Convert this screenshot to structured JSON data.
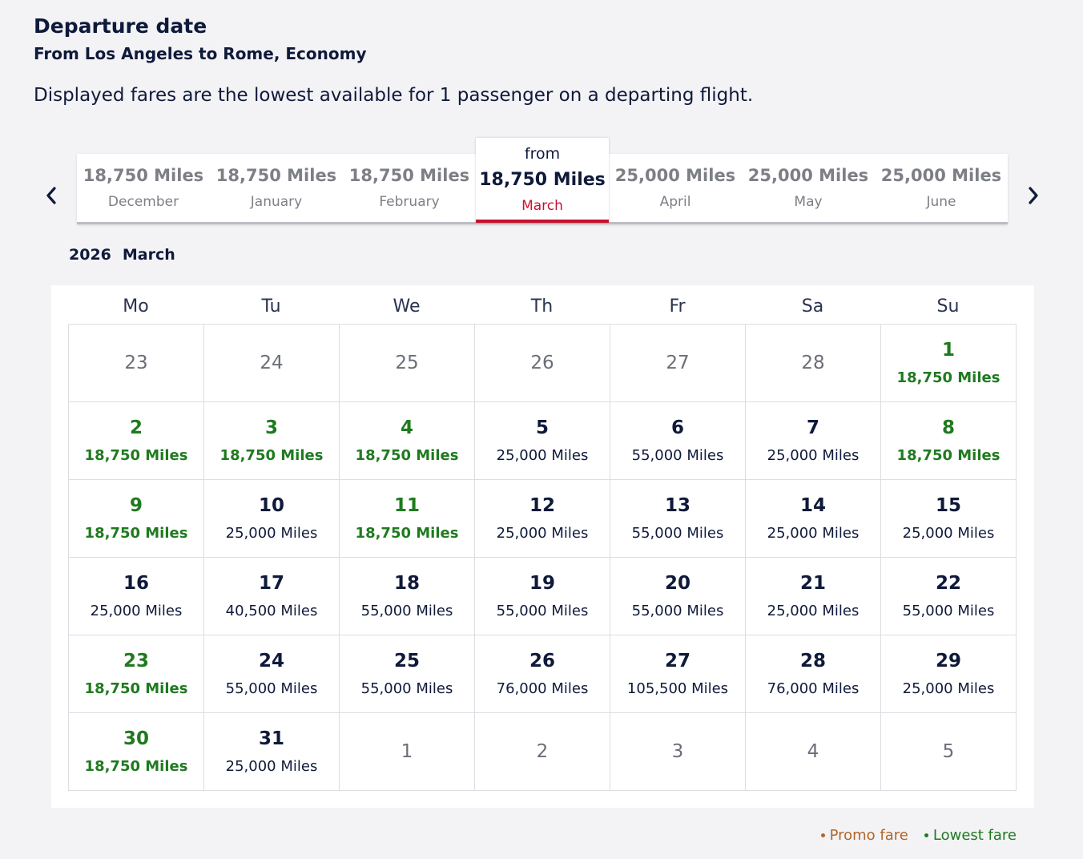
{
  "header": {
    "title": "Departure date",
    "route": "From Los Angeles to Rome, Economy",
    "note": "Displayed fares are the lowest available for 1 passenger on a departing flight."
  },
  "month_strip": {
    "active_prefix": "from",
    "tabs": [
      {
        "miles": "18,750 Miles",
        "month": "December",
        "active": false
      },
      {
        "miles": "18,750 Miles",
        "month": "January",
        "active": false
      },
      {
        "miles": "18,750 Miles",
        "month": "February",
        "active": false
      },
      {
        "miles": "18,750 Miles",
        "month": "March",
        "active": true
      },
      {
        "miles": "25,000 Miles",
        "month": "April",
        "active": false
      },
      {
        "miles": "25,000 Miles",
        "month": "May",
        "active": false
      },
      {
        "miles": "25,000 Miles",
        "month": "June",
        "active": false
      }
    ]
  },
  "calendar": {
    "year": "2026",
    "month": "March",
    "weekdays": [
      "Mo",
      "Tu",
      "We",
      "Th",
      "Fr",
      "Sa",
      "Su"
    ],
    "weeks": [
      [
        {
          "day": "23",
          "fare": "",
          "type": "other"
        },
        {
          "day": "24",
          "fare": "",
          "type": "other"
        },
        {
          "day": "25",
          "fare": "",
          "type": "other"
        },
        {
          "day": "26",
          "fare": "",
          "type": "other"
        },
        {
          "day": "27",
          "fare": "",
          "type": "other"
        },
        {
          "day": "28",
          "fare": "",
          "type": "other"
        },
        {
          "day": "1",
          "fare": "18,750 Miles",
          "type": "lowest"
        }
      ],
      [
        {
          "day": "2",
          "fare": "18,750 Miles",
          "type": "lowest"
        },
        {
          "day": "3",
          "fare": "18,750 Miles",
          "type": "lowest"
        },
        {
          "day": "4",
          "fare": "18,750 Miles",
          "type": "lowest"
        },
        {
          "day": "5",
          "fare": "25,000 Miles",
          "type": "normal"
        },
        {
          "day": "6",
          "fare": "55,000 Miles",
          "type": "normal"
        },
        {
          "day": "7",
          "fare": "25,000 Miles",
          "type": "normal"
        },
        {
          "day": "8",
          "fare": "18,750 Miles",
          "type": "lowest"
        }
      ],
      [
        {
          "day": "9",
          "fare": "18,750 Miles",
          "type": "lowest"
        },
        {
          "day": "10",
          "fare": "25,000 Miles",
          "type": "normal"
        },
        {
          "day": "11",
          "fare": "18,750 Miles",
          "type": "lowest"
        },
        {
          "day": "12",
          "fare": "25,000 Miles",
          "type": "normal"
        },
        {
          "day": "13",
          "fare": "55,000 Miles",
          "type": "normal"
        },
        {
          "day": "14",
          "fare": "25,000 Miles",
          "type": "normal"
        },
        {
          "day": "15",
          "fare": "25,000 Miles",
          "type": "normal"
        }
      ],
      [
        {
          "day": "16",
          "fare": "25,000 Miles",
          "type": "normal"
        },
        {
          "day": "17",
          "fare": "40,500 Miles",
          "type": "normal"
        },
        {
          "day": "18",
          "fare": "55,000 Miles",
          "type": "normal"
        },
        {
          "day": "19",
          "fare": "55,000 Miles",
          "type": "normal"
        },
        {
          "day": "20",
          "fare": "55,000 Miles",
          "type": "normal"
        },
        {
          "day": "21",
          "fare": "25,000 Miles",
          "type": "normal"
        },
        {
          "day": "22",
          "fare": "55,000 Miles",
          "type": "normal"
        }
      ],
      [
        {
          "day": "23",
          "fare": "18,750 Miles",
          "type": "lowest"
        },
        {
          "day": "24",
          "fare": "55,000 Miles",
          "type": "normal"
        },
        {
          "day": "25",
          "fare": "55,000 Miles",
          "type": "normal"
        },
        {
          "day": "26",
          "fare": "76,000 Miles",
          "type": "normal"
        },
        {
          "day": "27",
          "fare": "105,500 Miles",
          "type": "normal"
        },
        {
          "day": "28",
          "fare": "76,000 Miles",
          "type": "normal"
        },
        {
          "day": "29",
          "fare": "25,000 Miles",
          "type": "normal"
        }
      ],
      [
        {
          "day": "30",
          "fare": "18,750 Miles",
          "type": "lowest"
        },
        {
          "day": "31",
          "fare": "25,000 Miles",
          "type": "normal"
        },
        {
          "day": "1",
          "fare": "",
          "type": "other"
        },
        {
          "day": "2",
          "fare": "",
          "type": "other"
        },
        {
          "day": "3",
          "fare": "",
          "type": "other"
        },
        {
          "day": "4",
          "fare": "",
          "type": "other"
        },
        {
          "day": "5",
          "fare": "",
          "type": "other"
        }
      ]
    ]
  },
  "legend": {
    "promo_label": "Promo fare",
    "lowest_label": "Lowest fare",
    "colors": {
      "promo": "#b0662a",
      "lowest": "#1f7a1f",
      "active_accent": "#c8102e"
    }
  },
  "icons": {
    "prev": "chevron-left-icon",
    "next": "chevron-right-icon"
  }
}
